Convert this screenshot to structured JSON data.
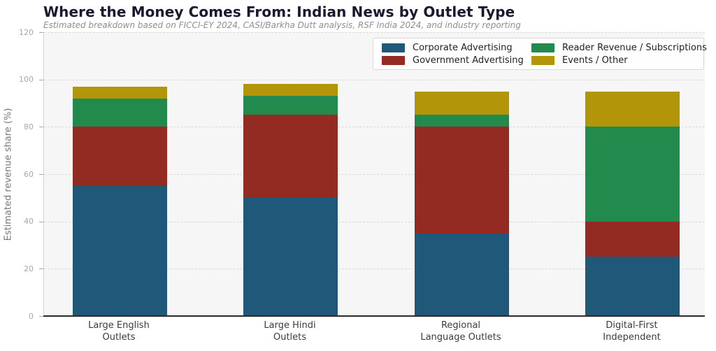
{
  "title": "Where the Money Comes From: Indian News by Outlet Type",
  "subtitle": "Estimated breakdown based on FICCI-EY 2024, CASI/Barkha Dutt analysis, RSF India 2024, and industry reporting",
  "colors": {
    "corporate_advertising": "#1f5878",
    "government_advertising": "#932b23",
    "reader_revenue": "#218a4c",
    "events_other": "#b39509",
    "title_text": "#181830",
    "subtitle_text": "#8f8f8f",
    "plot_background": "#f6f6f7",
    "axis_line": "#2b2b2b",
    "gridline": "#d9d9da",
    "tick_label": "#a8a8a8"
  },
  "legend": {
    "position": "upper right",
    "columns": 2
  },
  "chart_data": {
    "type": "bar",
    "stacked": true,
    "title": "Where the Money Comes From: Indian News by Outlet Type",
    "subtitle": "Estimated breakdown based on FICCI-EY 2024, CASI/Barkha Dutt analysis, RSF India 2024, and industry reporting",
    "categories": [
      "Large English\nOutlets",
      "Large Hindi\nOutlets",
      "Regional\nLanguage Outlets",
      "Digital-First\nIndependent"
    ],
    "series": [
      {
        "name": "Corporate Advertising",
        "color": "#1f5878",
        "values": [
          55,
          50,
          35,
          25
        ]
      },
      {
        "name": "Government Advertising",
        "color": "#932b23",
        "values": [
          25,
          35,
          45,
          15
        ]
      },
      {
        "name": "Reader Revenue / Subscriptions",
        "color": "#218a4c",
        "values": [
          12,
          8,
          5,
          40
        ]
      },
      {
        "name": "Events / Other",
        "color": "#b39509",
        "values": [
          5,
          5,
          10,
          15
        ]
      }
    ],
    "stack_totals": [
      97,
      98,
      95,
      95
    ],
    "xlabel": "",
    "ylabel": "Estimated revenue share (%)",
    "yticks": [
      0,
      20,
      40,
      60,
      80,
      100,
      120
    ],
    "ylim": [
      0,
      120
    ],
    "grid": "horizontal-dashed",
    "legend_position": "upper right"
  }
}
